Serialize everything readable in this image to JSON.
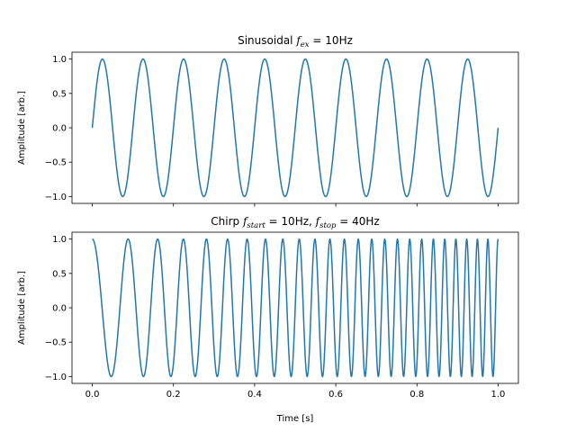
{
  "chart_data": [
    {
      "type": "line",
      "title": {
        "prefix": "Sinusoidal ",
        "var": "f",
        "sub": "ex",
        "suffix": " = 10Hz"
      },
      "xlabel": "",
      "ylabel": "Amplitude [arb.]",
      "xlim": [
        -0.05,
        1.05
      ],
      "ylim": [
        -1.1,
        1.1
      ],
      "xticks": [
        0.0,
        0.2,
        0.4,
        0.6,
        0.8,
        1.0
      ],
      "xtick_labels": [
        "",
        "",
        "",
        "",
        "",
        ""
      ],
      "yticks": [
        1.0,
        0.5,
        0.0,
        -0.5,
        -1.0
      ],
      "ytick_labels": [
        "1.0",
        "0.5",
        "0.0",
        "−0.5",
        "−1.0"
      ],
      "series": [
        {
          "function": "sine",
          "amplitude": 1.0,
          "frequency_hz": 10,
          "x_range": [
            0,
            1
          ],
          "color": "#1f77b4"
        }
      ],
      "grid": false
    },
    {
      "type": "line",
      "title": {
        "prefix": "Chirp ",
        "var1": "f",
        "sub1": "start",
        "mid": " = 10Hz, ",
        "var2": "f",
        "sub2": "stop",
        "suffix": " = 40Hz"
      },
      "xlabel": "Time [s]",
      "ylabel": "Amplitude [arb.]",
      "xlim": [
        -0.05,
        1.05
      ],
      "ylim": [
        -1.1,
        1.1
      ],
      "xticks": [
        0.0,
        0.2,
        0.4,
        0.6,
        0.8,
        1.0
      ],
      "xtick_labels": [
        "0.0",
        "0.2",
        "0.4",
        "0.6",
        "0.8",
        "1.0"
      ],
      "yticks": [
        1.0,
        0.5,
        0.0,
        -0.5,
        -1.0
      ],
      "ytick_labels": [
        "1.0",
        "0.5",
        "0.0",
        "−0.5",
        "−1.0"
      ],
      "series": [
        {
          "function": "linear-chirp-cosine",
          "amplitude": 1.0,
          "f_start_hz": 10,
          "f_stop_hz": 40,
          "x_range": [
            0,
            1
          ],
          "color": "#1f77b4"
        }
      ],
      "grid": false
    }
  ]
}
